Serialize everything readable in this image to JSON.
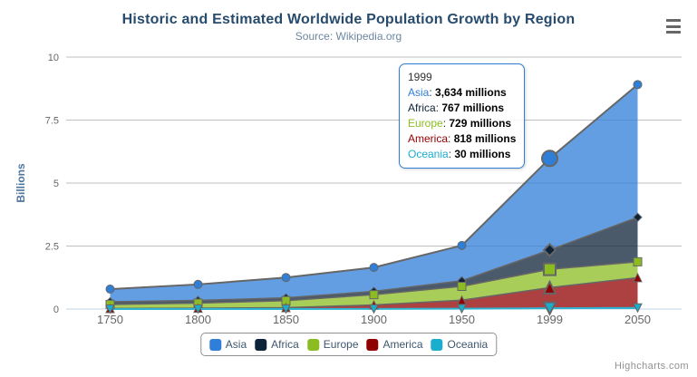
{
  "title": "Historic and Estimated Worldwide Population Growth by Region",
  "subtitle": "Source: Wikipedia.org",
  "credits": "Highcharts.com",
  "menu": {
    "icon": "hamburger-menu"
  },
  "axis": {
    "y_title": "Billions",
    "y_title_color": "#4d759e",
    "tick_label_color": "#666666",
    "grid_color": "#c0c0c0",
    "axis_line_color": "#c0d0e0"
  },
  "chart_data": {
    "type": "area",
    "stacking": "normal",
    "title": "Historic and Estimated Worldwide Population Growth by Region",
    "subtitle": "Source: Wikipedia.org",
    "ylabel": "Billions",
    "unit": "millions",
    "categories": [
      "1750",
      "1800",
      "1850",
      "1900",
      "1950",
      "1999",
      "2050"
    ],
    "y_ticks": [
      0,
      2.5,
      5,
      7.5,
      10
    ],
    "ylim": [
      0,
      10
    ],
    "grid": true,
    "legend_position": "bottom",
    "hover_index": 5,
    "fill_opacity": 0.75,
    "series": [
      {
        "name": "Asia",
        "color": "#2f7ed8",
        "line_color": "#666666",
        "line_width": 2,
        "marker": "circle",
        "values": [
          502,
          635,
          809,
          947,
          1402,
          3634,
          5268
        ]
      },
      {
        "name": "Africa",
        "color": "#0d233a",
        "line_color": "#666666",
        "line_width": 1.5,
        "marker": "diamond",
        "values": [
          106,
          107,
          111,
          133,
          221,
          767,
          1766
        ]
      },
      {
        "name": "Europe",
        "color": "#8bbc21",
        "line_color": "#666666",
        "line_width": 1.5,
        "marker": "square",
        "values": [
          163,
          203,
          276,
          408,
          547,
          729,
          628
        ]
      },
      {
        "name": "America",
        "color": "#910000",
        "line_color": "#666666",
        "line_width": 1.5,
        "marker": "triangle",
        "values": [
          18,
          31,
          54,
          156,
          339,
          818,
          1201
        ]
      },
      {
        "name": "Oceania",
        "color": "#1aadce",
        "line_color": "#2db3d2",
        "line_width": 2,
        "marker": "triangle-down",
        "values": [
          2,
          2,
          2,
          6,
          13,
          30,
          46
        ]
      }
    ]
  },
  "tooltip": {
    "header": "1999",
    "suffix": " millions",
    "rows": [
      {
        "name": "Asia",
        "color": "#2f7ed8",
        "value": "3,634"
      },
      {
        "name": "Africa",
        "color": "#0d233a",
        "value": "767"
      },
      {
        "name": "Europe",
        "color": "#8bbc21",
        "value": "729"
      },
      {
        "name": "America",
        "color": "#910000",
        "value": "818"
      },
      {
        "name": "Oceania",
        "color": "#1aadce",
        "value": "30"
      }
    ]
  }
}
